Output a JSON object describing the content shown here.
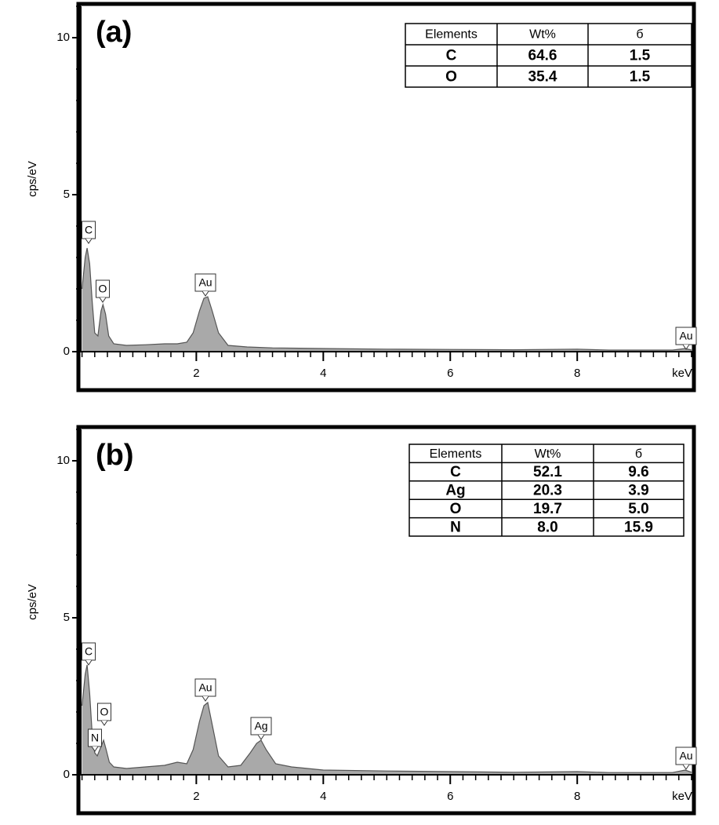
{
  "chart_data": [
    {
      "type": "area",
      "title": "(a)",
      "y_label": "cps/eV",
      "x_label": "keV",
      "color": "#a9a9a9",
      "x": [
        0.2,
        0.25,
        0.28,
        0.32,
        0.36,
        0.4,
        0.45,
        0.5,
        0.53,
        0.57,
        0.62,
        0.7,
        0.9,
        1.2,
        1.5,
        1.7,
        1.85,
        1.95,
        2.05,
        2.12,
        2.18,
        2.25,
        2.35,
        2.5,
        2.8,
        3.2,
        4,
        5,
        6,
        7,
        8,
        8.5,
        9,
        9.5,
        9.7,
        9.8
      ],
      "values": [
        2.0,
        3.0,
        3.3,
        2.8,
        1.6,
        0.6,
        0.5,
        1.3,
        1.5,
        1.2,
        0.5,
        0.25,
        0.2,
        0.22,
        0.25,
        0.25,
        0.3,
        0.6,
        1.3,
        1.7,
        1.75,
        1.3,
        0.6,
        0.2,
        0.15,
        0.12,
        0.1,
        0.08,
        0.07,
        0.06,
        0.08,
        0.05,
        0.05,
        0.05,
        0.1,
        0.05
      ],
      "xlim": [
        0.18,
        9.85
      ],
      "ylim": [
        0,
        11
      ],
      "xticks": [
        2,
        4,
        6,
        8
      ],
      "yticks": [
        0,
        5,
        10
      ],
      "peak_labels": [
        "C",
        "O",
        "Au",
        "Au"
      ],
      "table": {
        "columns": [
          "Elements",
          "Wt%",
          "б"
        ],
        "rows": [
          [
            "C",
            64.6,
            1.5
          ],
          [
            "O",
            35.4,
            1.5
          ]
        ]
      }
    },
    {
      "type": "area",
      "title": "(b)",
      "y_label": "cps/eV",
      "x_label": "keV",
      "color": "#a9a9a9",
      "x": [
        0.2,
        0.25,
        0.28,
        0.32,
        0.36,
        0.4,
        0.44,
        0.5,
        0.54,
        0.58,
        0.63,
        0.7,
        0.9,
        1.2,
        1.5,
        1.7,
        1.85,
        1.95,
        2.05,
        2.12,
        2.18,
        2.25,
        2.35,
        2.5,
        2.7,
        2.85,
        2.95,
        3.02,
        3.1,
        3.25,
        3.5,
        4,
        5,
        6,
        7,
        8,
        8.5,
        9,
        9.5,
        9.7,
        9.8
      ],
      "values": [
        2.2,
        3.2,
        3.5,
        2.6,
        1.3,
        0.7,
        0.6,
        0.9,
        1.1,
        0.8,
        0.4,
        0.25,
        0.2,
        0.25,
        0.3,
        0.4,
        0.35,
        0.8,
        1.7,
        2.2,
        2.3,
        1.6,
        0.6,
        0.25,
        0.3,
        0.7,
        1.0,
        1.1,
        0.8,
        0.35,
        0.25,
        0.15,
        0.12,
        0.1,
        0.08,
        0.1,
        0.07,
        0.07,
        0.07,
        0.15,
        0.08
      ],
      "xlim": [
        0.18,
        9.85
      ],
      "ylim": [
        0,
        11
      ],
      "xticks": [
        2,
        4,
        6,
        8
      ],
      "yticks": [
        0,
        5,
        10
      ],
      "peak_labels": [
        "C",
        "O",
        "N",
        "Au",
        "Ag",
        "Au"
      ],
      "table": {
        "columns": [
          "Elements",
          "Wt%",
          "б"
        ],
        "rows": [
          [
            "C",
            52.1,
            9.6
          ],
          [
            "Ag",
            20.3,
            3.9
          ],
          [
            "O",
            19.7,
            {
              "value": 5,
              "label": "5.0"
            }
          ],
          [
            "N",
            {
              "value": 8,
              "label": "8.0"
            },
            15.9
          ]
        ]
      }
    }
  ]
}
